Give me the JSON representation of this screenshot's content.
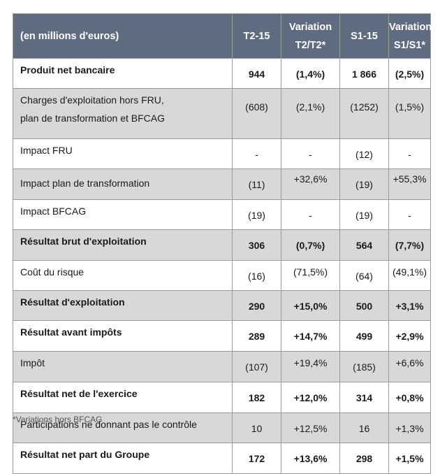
{
  "table": {
    "headers": [
      "(en millions d'euros)",
      "T2-15",
      "Variation T2/T2*",
      "S1-15",
      "Variation S1/S1*"
    ],
    "header_lines": {
      "var_t2": [
        "Variation",
        "T2/T2*"
      ],
      "var_s1": [
        "Variation",
        "S1/S1*"
      ]
    },
    "rows": [
      {
        "label": "Produit net bancaire",
        "t2": "944",
        "var_t2": "(1,4%)",
        "s1": "1 866",
        "var_s1": "(2,5%)"
      },
      {
        "label": "Charges d'exploitation hors FRU, plan de transformation et BFCAG",
        "label_lines": [
          "Charges d'exploitation hors FRU,",
          "plan de transformation et BFCAG"
        ],
        "t2": "(608)",
        "var_t2": "(2,1%)",
        "s1": "(1252)",
        "var_s1": "(1,5%)"
      },
      {
        "label": "Impact FRU",
        "t2": "-",
        "var_t2": "-",
        "s1": "(12)",
        "var_s1": "-"
      },
      {
        "label": "Impact plan de transformation",
        "t2": "(11)",
        "var_t2": "+32,6%",
        "s1": "(19)",
        "var_s1": "+55,3%"
      },
      {
        "label": "Impact BFCAG",
        "t2": "(19)",
        "var_t2": "-",
        "s1": "(19)",
        "var_s1": "-"
      },
      {
        "label": "Résultat  brut d'exploitation",
        "t2": "306",
        "var_t2": "(0,7%)",
        "s1": "564",
        "var_s1": "(7,7%)"
      },
      {
        "label": "Coût du risque",
        "t2": "(16)",
        "var_t2": "(71,5%)",
        "s1": "(64)",
        "var_s1": "(49,1%)"
      },
      {
        "label": "Résultat d'exploitation",
        "t2": "290",
        "var_t2": "+15,0%",
        "s1": "500",
        "var_s1": "+3,1%"
      },
      {
        "label": "Résultat avant impôts",
        "t2": "289",
        "var_t2": "+14,7%",
        "s1": "499",
        "var_s1": "+2,9%"
      },
      {
        "label": "Impôt",
        "t2": "(107)",
        "var_t2": "+19,4%",
        "s1": "(185)",
        "var_s1": "+6,6%"
      },
      {
        "label": "Résultat net de l'exercice",
        "t2": "182",
        "var_t2": "+12,0%",
        "s1": "314",
        "var_s1": "+0,8%"
      },
      {
        "label": "Participations ne donnant pas le contrôle",
        "t2": "10",
        "var_t2": "+12,5%",
        "s1": "16",
        "var_s1": "+1,3%"
      },
      {
        "label": "Résultat net part du Groupe",
        "t2": "172",
        "var_t2": "+13,6%",
        "s1": "298",
        "var_s1": "+1,5%"
      }
    ]
  },
  "footnote": "*Variations hors BFCAG",
  "colors": {
    "header_bg": "#5f6c80",
    "grey_row": "#d8d8d8"
  }
}
